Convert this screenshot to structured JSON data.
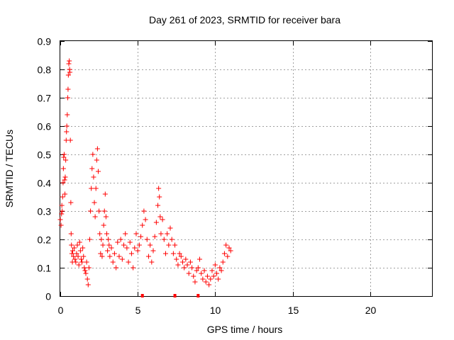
{
  "chart_data": {
    "type": "scatter",
    "title": "Day 261 of 2023, SRMTID for receiver bara",
    "xlabel": "GPS time / hours",
    "ylabel": "SRMTID / TECUs",
    "xlim": [
      0,
      24
    ],
    "ylim": [
      0,
      0.9
    ],
    "xticks": [
      0,
      5,
      10,
      15,
      20
    ],
    "yticks": [
      0,
      0.1,
      0.2,
      0.3,
      0.4,
      0.5,
      0.6,
      0.7,
      0.8,
      0.9
    ],
    "xtick_labels": [
      "0",
      "5",
      "10",
      "15",
      "20"
    ],
    "ytick_labels": [
      "0",
      "0.1",
      "0.2",
      "0.3",
      "0.4",
      "0.5",
      "0.6",
      "0.7",
      "0.8",
      "0.9"
    ],
    "grid": true,
    "marker": "+",
    "color": "#ff0000",
    "zero_markers_x": [
      5.3,
      7.4,
      8.9
    ],
    "series": [
      {
        "name": "SRMTID",
        "points": [
          [
            0.0,
            0.27
          ],
          [
            0.05,
            0.25
          ],
          [
            0.08,
            0.29
          ],
          [
            0.1,
            0.32
          ],
          [
            0.12,
            0.3
          ],
          [
            0.15,
            0.35
          ],
          [
            0.18,
            0.4
          ],
          [
            0.2,
            0.45
          ],
          [
            0.22,
            0.49
          ],
          [
            0.25,
            0.5
          ],
          [
            0.28,
            0.41
          ],
          [
            0.3,
            0.36
          ],
          [
            0.32,
            0.42
          ],
          [
            0.35,
            0.48
          ],
          [
            0.38,
            0.55
          ],
          [
            0.4,
            0.58
          ],
          [
            0.42,
            0.6
          ],
          [
            0.45,
            0.64
          ],
          [
            0.48,
            0.7
          ],
          [
            0.5,
            0.73
          ],
          [
            0.52,
            0.78
          ],
          [
            0.55,
            0.82
          ],
          [
            0.58,
            0.83
          ],
          [
            0.6,
            0.8
          ],
          [
            0.62,
            0.79
          ],
          [
            0.65,
            0.55
          ],
          [
            0.68,
            0.33
          ],
          [
            0.7,
            0.22
          ],
          [
            0.72,
            0.18
          ],
          [
            0.75,
            0.15
          ],
          [
            0.78,
            0.12
          ],
          [
            0.8,
            0.16
          ],
          [
            0.85,
            0.14
          ],
          [
            0.9,
            0.17
          ],
          [
            0.95,
            0.13
          ],
          [
            1.0,
            0.12
          ],
          [
            1.05,
            0.15
          ],
          [
            1.1,
            0.18
          ],
          [
            1.15,
            0.14
          ],
          [
            1.2,
            0.11
          ],
          [
            1.25,
            0.19
          ],
          [
            1.3,
            0.16
          ],
          [
            1.35,
            0.13
          ],
          [
            1.4,
            0.12
          ],
          [
            1.45,
            0.17
          ],
          [
            1.5,
            0.14
          ],
          [
            1.55,
            0.1
          ],
          [
            1.6,
            0.09
          ],
          [
            1.65,
            0.08
          ],
          [
            1.7,
            0.12
          ],
          [
            1.75,
            0.06
          ],
          [
            1.8,
            0.04
          ],
          [
            1.85,
            0.1
          ],
          [
            1.9,
            0.2
          ],
          [
            1.95,
            0.3
          ],
          [
            2.0,
            0.38
          ],
          [
            2.05,
            0.45
          ],
          [
            2.1,
            0.5
          ],
          [
            2.15,
            0.42
          ],
          [
            2.2,
            0.33
          ],
          [
            2.25,
            0.28
          ],
          [
            2.3,
            0.38
          ],
          [
            2.35,
            0.48
          ],
          [
            2.4,
            0.52
          ],
          [
            2.45,
            0.44
          ],
          [
            2.5,
            0.3
          ],
          [
            2.55,
            0.22
          ],
          [
            2.6,
            0.15
          ],
          [
            2.65,
            0.2
          ],
          [
            2.7,
            0.14
          ],
          [
            2.75,
            0.18
          ],
          [
            2.8,
            0.25
          ],
          [
            2.85,
            0.3
          ],
          [
            2.9,
            0.36
          ],
          [
            2.95,
            0.28
          ],
          [
            3.0,
            0.22
          ],
          [
            3.05,
            0.16
          ],
          [
            3.1,
            0.2
          ],
          [
            3.15,
            0.18
          ],
          [
            3.2,
            0.14
          ],
          [
            3.3,
            0.17
          ],
          [
            3.4,
            0.12
          ],
          [
            3.5,
            0.15
          ],
          [
            3.6,
            0.1
          ],
          [
            3.7,
            0.19
          ],
          [
            3.8,
            0.14
          ],
          [
            3.9,
            0.2
          ],
          [
            4.0,
            0.13
          ],
          [
            4.1,
            0.18
          ],
          [
            4.2,
            0.22
          ],
          [
            4.3,
            0.17
          ],
          [
            4.4,
            0.12
          ],
          [
            4.5,
            0.19
          ],
          [
            4.6,
            0.15
          ],
          [
            4.7,
            0.1
          ],
          [
            4.8,
            0.17
          ],
          [
            4.9,
            0.22
          ],
          [
            5.0,
            0.16
          ],
          [
            5.1,
            0.18
          ],
          [
            5.2,
            0.21
          ],
          [
            5.3,
            0.25
          ],
          [
            5.4,
            0.3
          ],
          [
            5.5,
            0.27
          ],
          [
            5.6,
            0.2
          ],
          [
            5.7,
            0.14
          ],
          [
            5.8,
            0.18
          ],
          [
            5.9,
            0.12
          ],
          [
            6.0,
            0.16
          ],
          [
            6.1,
            0.21
          ],
          [
            6.2,
            0.26
          ],
          [
            6.3,
            0.32
          ],
          [
            6.35,
            0.38
          ],
          [
            6.4,
            0.35
          ],
          [
            6.45,
            0.28
          ],
          [
            6.5,
            0.22
          ],
          [
            6.6,
            0.27
          ],
          [
            6.7,
            0.2
          ],
          [
            6.8,
            0.15
          ],
          [
            6.9,
            0.22
          ],
          [
            7.0,
            0.18
          ],
          [
            7.1,
            0.24
          ],
          [
            7.2,
            0.2
          ],
          [
            7.3,
            0.15
          ],
          [
            7.4,
            0.18
          ],
          [
            7.5,
            0.13
          ],
          [
            7.6,
            0.11
          ],
          [
            7.7,
            0.15
          ],
          [
            7.8,
            0.14
          ],
          [
            7.9,
            0.12
          ],
          [
            8.0,
            0.1
          ],
          [
            8.1,
            0.13
          ],
          [
            8.2,
            0.11
          ],
          [
            8.3,
            0.08
          ],
          [
            8.4,
            0.12
          ],
          [
            8.5,
            0.1
          ],
          [
            8.6,
            0.07
          ],
          [
            8.7,
            0.05
          ],
          [
            8.8,
            0.09
          ],
          [
            8.9,
            0.1
          ],
          [
            9.0,
            0.13
          ],
          [
            9.1,
            0.08
          ],
          [
            9.2,
            0.06
          ],
          [
            9.3,
            0.09
          ],
          [
            9.4,
            0.05
          ],
          [
            9.5,
            0.07
          ],
          [
            9.6,
            0.04
          ],
          [
            9.7,
            0.06
          ],
          [
            9.8,
            0.09
          ],
          [
            9.9,
            0.07
          ],
          [
            10.0,
            0.11
          ],
          [
            10.1,
            0.08
          ],
          [
            10.2,
            0.06
          ],
          [
            10.3,
            0.1
          ],
          [
            10.4,
            0.09
          ],
          [
            10.5,
            0.12
          ],
          [
            10.6,
            0.15
          ],
          [
            10.7,
            0.18
          ],
          [
            10.8,
            0.14
          ],
          [
            10.9,
            0.17
          ],
          [
            11.0,
            0.16
          ]
        ]
      }
    ]
  }
}
